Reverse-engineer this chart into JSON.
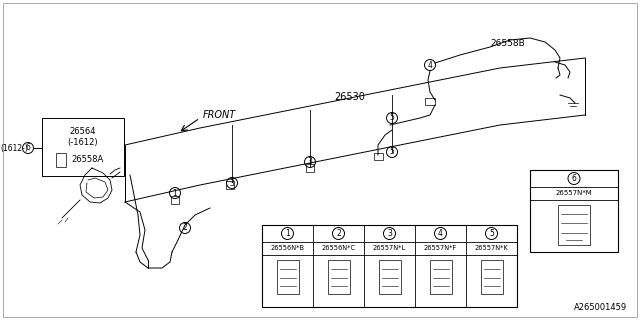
{
  "bg_color": "#ffffff",
  "line_color": "#000000",
  "part_number": "A265001459",
  "box_label1": "26564",
  "box_label2": "(-1612)",
  "box_label3": "26558A",
  "label_26530": "26530",
  "label_26558B": "26558B",
  "label_front": "FRONT",
  "label_6_text": "(1612-)",
  "part_codes": [
    "26556N*B",
    "26556N*C",
    "26557N*L",
    "26557N*F",
    "26557N*K"
  ],
  "part_nums": [
    "1",
    "2",
    "3",
    "4",
    "5"
  ],
  "part6_code": "26557N*M",
  "part6_num": "6"
}
